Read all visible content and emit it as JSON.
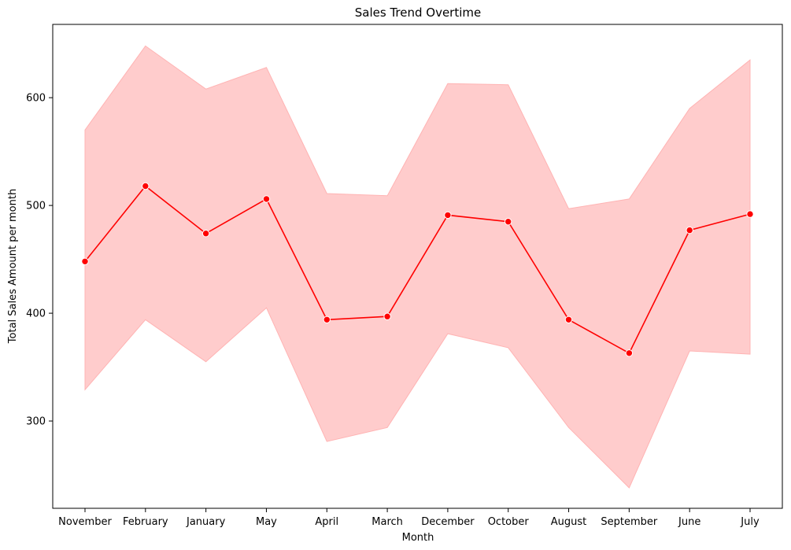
{
  "chart_data": {
    "type": "line",
    "title": "Sales Trend Overtime",
    "xlabel": "Month",
    "ylabel": "Total Sales Amount per month",
    "categories": [
      "November",
      "February",
      "January",
      "May",
      "April",
      "March",
      "December",
      "October",
      "August",
      "September",
      "June",
      "July"
    ],
    "series": [
      {
        "values": [
          448,
          518,
          474,
          506,
          394,
          397,
          491,
          485,
          394,
          363,
          477,
          492
        ],
        "ci_upper": [
          570,
          648,
          608,
          628,
          511,
          509,
          613,
          612,
          497,
          506,
          590,
          635
        ],
        "ci_lower": [
          329,
          394,
          355,
          405,
          281,
          294,
          381,
          368,
          294,
          238,
          365,
          362
        ],
        "color": "#ff0000",
        "band_color": "#ffcccc"
      }
    ],
    "yticks": [
      300,
      400,
      500,
      600
    ],
    "ylim": [
      219,
      668
    ],
    "grid": false,
    "marker": "circle"
  }
}
